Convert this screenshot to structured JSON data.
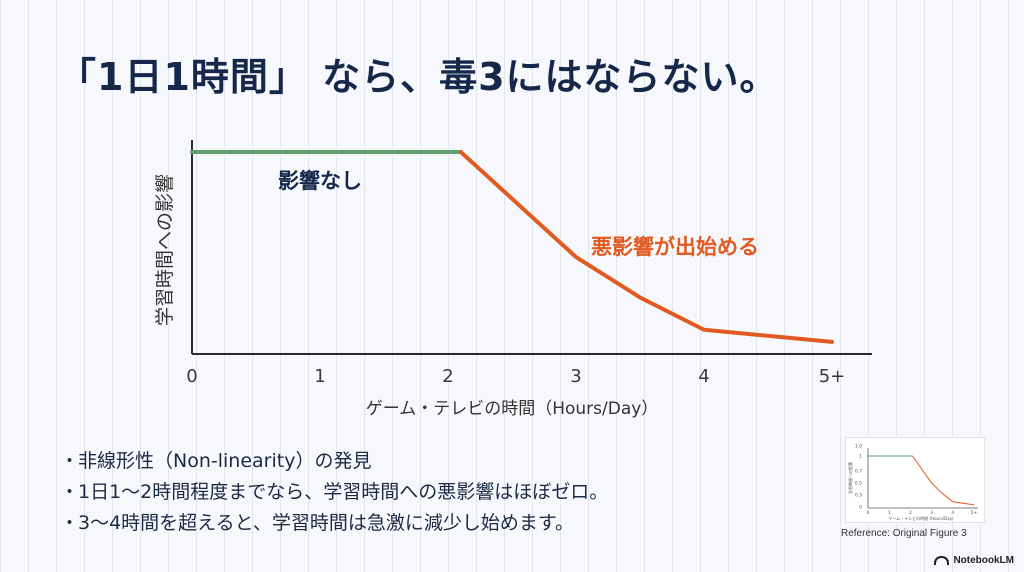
{
  "title": "「1日1時間」 なら、毒3にはならない。",
  "chart_data": {
    "type": "line",
    "xlabel": "ゲーム・テレビの時間（Hours/Day）",
    "ylabel": "学習時間への影響",
    "x_ticks": [
      "0",
      "1",
      "2",
      "3",
      "4",
      "5+"
    ],
    "xlim": [
      0,
      5
    ],
    "ylim": [
      0,
      1
    ],
    "series": [
      {
        "name": "影響なし",
        "color": "#5f9e6e",
        "x": [
          0,
          2.1
        ],
        "y": [
          1.0,
          1.0
        ]
      },
      {
        "name": "悪影響が出始める",
        "color": "#e05a22",
        "x": [
          2.1,
          3,
          3.5,
          4,
          5
        ],
        "y": [
          1.0,
          0.48,
          0.28,
          0.12,
          0.06
        ]
      }
    ],
    "annotations": [
      {
        "text": "影響なし",
        "color": "#16284a"
      },
      {
        "text": "悪影響が出始める",
        "color": "#e05a22"
      }
    ],
    "grid": false
  },
  "bullets": [
    "非線形性（Non-linearity）の発見",
    "1日1〜2時間程度までなら、学習時間への悪影響はほぼゼロ。",
    "3〜4時間を超えると、学習時間は急激に減少し始めます。"
  ],
  "reference": {
    "caption": "Reference: Original Figure 3",
    "thumb_ylabel": "学習時間への影響",
    "thumb_xlabel": "ゲーム・テレビの時間 (Hours/Day)",
    "thumb_y_ticks": [
      "1.0",
      "1",
      "0.7",
      "0.5",
      "0.3",
      "0"
    ],
    "thumb_x_ticks": [
      "0",
      "1",
      "2",
      "3",
      "4",
      "5+"
    ]
  },
  "brand": {
    "name": "NotebookLM",
    "icon": "notebooklm-logo-icon"
  }
}
